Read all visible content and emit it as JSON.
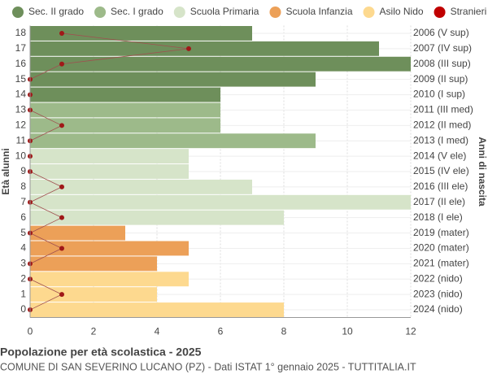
{
  "chart_data": {
    "type": "bar",
    "orientation": "horizontal",
    "title": "Popolazione per età scolastica - 2025",
    "subtitle": "COMUNE DI SAN SEVERINO LUCANO (PZ) - Dati ISTAT 1° gennaio 2025 - TUTTITALIA.IT",
    "ylabel": "Età alunni",
    "y2label": "Anni di nascita",
    "categories": [
      "18",
      "17",
      "16",
      "15",
      "14",
      "13",
      "12",
      "11",
      "10",
      "9",
      "8",
      "7",
      "6",
      "5",
      "4",
      "3",
      "2",
      "1",
      "0"
    ],
    "right_labels": [
      "2006 (V sup)",
      "2007 (IV sup)",
      "2008 (III sup)",
      "2009 (II sup)",
      "2010 (I sup)",
      "2011 (III med)",
      "2012 (II med)",
      "2013 (I med)",
      "2014 (V ele)",
      "2015 (IV ele)",
      "2016 (III ele)",
      "2017 (II ele)",
      "2018 (I ele)",
      "2019 (mater)",
      "2020 (mater)",
      "2021 (mater)",
      "2022 (nido)",
      "2023 (nido)",
      "2024 (nido)"
    ],
    "series": [
      {
        "name": "Sec. II grado",
        "color": "#6e8f5b",
        "type": "bar",
        "values": [
          7,
          11,
          12,
          9,
          6,
          null,
          null,
          null,
          null,
          null,
          null,
          null,
          null,
          null,
          null,
          null,
          null,
          null,
          null
        ]
      },
      {
        "name": "Sec. I grado",
        "color": "#9dba8a",
        "type": "bar",
        "values": [
          null,
          null,
          null,
          null,
          null,
          6,
          6,
          9,
          null,
          null,
          null,
          null,
          null,
          null,
          null,
          null,
          null,
          null,
          null
        ]
      },
      {
        "name": "Scuola Primaria",
        "color": "#d6e4c9",
        "type": "bar",
        "values": [
          null,
          null,
          null,
          null,
          null,
          null,
          null,
          null,
          5,
          5,
          7,
          12,
          8,
          null,
          null,
          null,
          null,
          null,
          null
        ]
      },
      {
        "name": "Scuola Infanzia",
        "color": "#eca058",
        "type": "bar",
        "values": [
          null,
          null,
          null,
          null,
          null,
          null,
          null,
          null,
          null,
          null,
          null,
          null,
          null,
          3,
          5,
          4,
          null,
          null,
          null
        ]
      },
      {
        "name": "Asilo Nido",
        "color": "#fdd98f",
        "type": "bar",
        "values": [
          null,
          null,
          null,
          null,
          null,
          null,
          null,
          null,
          null,
          null,
          null,
          null,
          null,
          null,
          null,
          null,
          5,
          4,
          8
        ]
      },
      {
        "name": "Stranieri",
        "color": "#c00000",
        "type": "line",
        "values": [
          1,
          5,
          1,
          0,
          0,
          0,
          1,
          0,
          0,
          0,
          1,
          0,
          1,
          0,
          1,
          0,
          0,
          1,
          0
        ]
      }
    ],
    "xlim": [
      0,
      12
    ],
    "xticks": [
      0,
      2,
      4,
      6,
      8,
      10,
      12
    ],
    "grid": true
  }
}
